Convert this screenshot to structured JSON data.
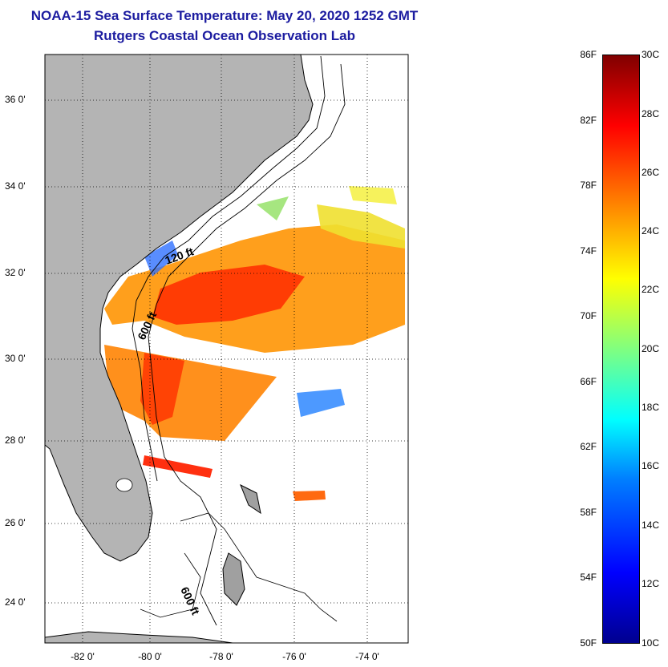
{
  "title": "NOAA-15 Sea Surface Temperature:  May 20, 2020 1252 GMT",
  "subtitle": "Rutgers Coastal Ocean Observation Lab",
  "map": {
    "lat_labels": [
      "36 0'",
      "34 0'",
      "32 0'",
      "30 0'",
      "28 0'",
      "26 0'",
      "24 0'"
    ],
    "lon_labels": [
      "-82 0'",
      "-80 0'",
      "-78 0'",
      "-76 0'",
      "-74 0'"
    ],
    "contour_labels": [
      "120 ft",
      "600 ft",
      "600 ft"
    ],
    "colors": {
      "land": "#b4b4b4",
      "cloud": "#ffffff",
      "coast": "#000000",
      "grid": "#000000"
    }
  },
  "colorbar": {
    "fahrenheit": [
      "86F",
      "82F",
      "78F",
      "74F",
      "70F",
      "66F",
      "62F",
      "58F",
      "54F",
      "50F"
    ],
    "celsius": [
      "30C",
      "28C",
      "26C",
      "24C",
      "22C",
      "20C",
      "18C",
      "16C",
      "14C",
      "12C",
      "10C"
    ],
    "colormap": "jet"
  }
}
